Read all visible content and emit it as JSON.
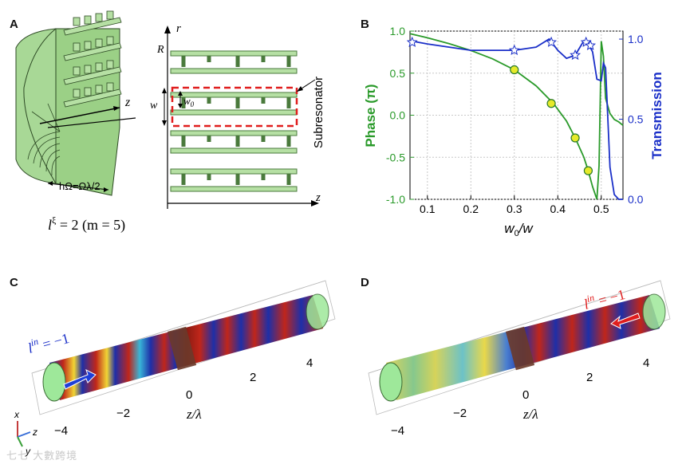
{
  "panels": {
    "a": "A",
    "b": "B",
    "c": "C",
    "d": "D"
  },
  "panel_a": {
    "axis_z": "z",
    "axis_r": "r",
    "axis_z2": "z",
    "label_R": "R",
    "label_w": "w",
    "label_w0": "w",
    "label_w0_sub": "0",
    "subresonator": "Subresonator",
    "height_label": "hΩ=Ωλ/2",
    "l_xi_main": "l",
    "l_xi_sup": "ξ",
    "l_xi_rest": " = 2 (m = 5)"
  },
  "chart_data": {
    "type": "line",
    "title": "",
    "xlabel_main": "w",
    "xlabel_sub": "0",
    "xlabel_rest": "/w",
    "ylabel_left": "Phase (π)",
    "ylabel_right": "Transmission",
    "xlim": [
      0.06,
      0.55
    ],
    "ylim_left": [
      -1.0,
      1.0
    ],
    "ylim_right": [
      0.0,
      1.05
    ],
    "x_ticks": [
      "0.1",
      "0.2",
      "0.3",
      "0.4",
      "0.5"
    ],
    "y_ticks_left": [
      "1.0",
      "0.5",
      "0.0",
      "-0.5",
      "-1.0"
    ],
    "y_ticks_right": [
      "1.0",
      "0.5",
      "0.0"
    ],
    "grid": true,
    "series": [
      {
        "name": "Phase",
        "axis": "left",
        "color": "#2a9a2a",
        "x": [
          0.06,
          0.1,
          0.15,
          0.2,
          0.25,
          0.3,
          0.35,
          0.39,
          0.42,
          0.44,
          0.46,
          0.47,
          0.48,
          0.49,
          0.495,
          0.5,
          0.505,
          0.51,
          0.52,
          0.53,
          0.54,
          0.55
        ],
        "y": [
          0.97,
          0.92,
          0.85,
          0.77,
          0.67,
          0.54,
          0.35,
          0.14,
          -0.07,
          -0.27,
          -0.5,
          -0.66,
          -0.85,
          -1.0,
          -0.6,
          0.88,
          0.7,
          0.2,
          0.02,
          -0.05,
          -0.08,
          -0.12
        ]
      },
      {
        "name": "Transmission",
        "axis": "right",
        "color": "#1a2fc8",
        "x": [
          0.06,
          0.1,
          0.15,
          0.2,
          0.25,
          0.3,
          0.35,
          0.38,
          0.4,
          0.42,
          0.44,
          0.46,
          0.47,
          0.48,
          0.49,
          0.5,
          0.505,
          0.51,
          0.52,
          0.53,
          0.54,
          0.55
        ],
        "y": [
          0.99,
          0.97,
          0.95,
          0.93,
          0.93,
          0.93,
          0.95,
          1.0,
          0.93,
          0.88,
          0.9,
          0.99,
          0.97,
          0.92,
          0.75,
          0.74,
          0.85,
          0.82,
          0.2,
          0.03,
          0.0,
          0.0
        ]
      }
    ],
    "phase_markers": {
      "x": [
        0.3,
        0.385,
        0.44,
        0.47
      ],
      "y": [
        0.54,
        0.14,
        -0.27,
        -0.66
      ]
    },
    "transmission_markers": {
      "x": [
        0.065,
        0.3,
        0.385,
        0.44,
        0.465,
        0.475
      ],
      "y": [
        0.98,
        0.93,
        0.98,
        0.9,
        0.98,
        0.96
      ]
    }
  },
  "panel_c": {
    "l_label_main": "l",
    "l_label_sup": "in",
    "l_label_rest": " = −1",
    "ticks": [
      "−4",
      "−2",
      "0",
      "2",
      "4"
    ],
    "axis_label": "z/λ",
    "triad": {
      "x": "x",
      "y": "y",
      "z": "z"
    }
  },
  "panel_d": {
    "l_label_main": "l",
    "l_label_sup": "in",
    "l_label_rest": " = −1",
    "ticks": [
      "−4",
      "−2",
      "0",
      "2",
      "4"
    ],
    "axis_label": "z/λ"
  },
  "watermark": "七七 大數跨境"
}
